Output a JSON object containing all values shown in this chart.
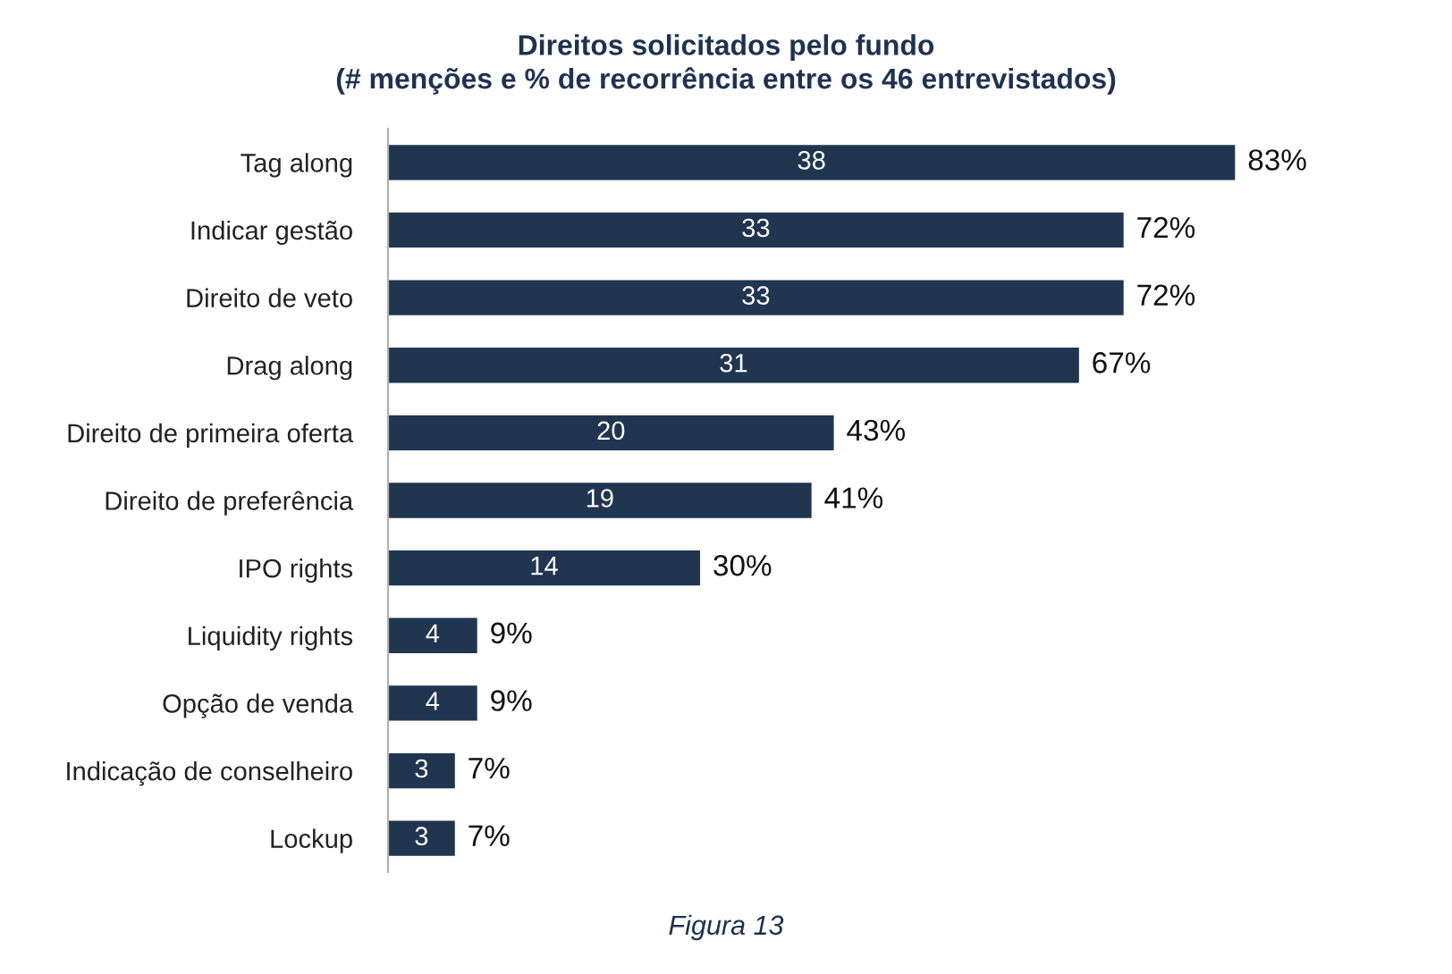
{
  "chart_data": {
    "type": "bar",
    "orientation": "horizontal",
    "title": "Direitos solicitados pelo fundo\n(# menções e % de recorrência entre os 46 entrevistados)",
    "categories": [
      "Tag along",
      "Indicar gestão",
      "Direito de veto",
      "Drag along",
      "Direito de primeira oferta",
      "Direito de preferência",
      "IPO rights",
      "Liquidity rights",
      "Opção de venda",
      "Indicação de conselheiro",
      "Lockup"
    ],
    "values": [
      38,
      33,
      33,
      31,
      20,
      19,
      14,
      4,
      4,
      3,
      3
    ],
    "color": "#203550",
    "data_labels": true,
    "grid": false,
    "legend": false,
    "tick_labels": "y",
    "annotations": [
      {
        "text": "83%",
        "x": 38,
        "y": "Tag along"
      },
      {
        "text": "72%",
        "x": 33,
        "y": "Indicar gestão"
      },
      {
        "text": "72%",
        "x": 33,
        "y": "Direito de veto"
      },
      {
        "text": "67%",
        "x": 31,
        "y": "Drag along"
      },
      {
        "text": "43%",
        "x": 20,
        "y": "Direito de primeira oferta"
      },
      {
        "text": "41%",
        "x": 19,
        "y": "Direito de preferência"
      },
      {
        "text": "30%",
        "x": 14,
        "y": "IPO rights"
      },
      {
        "text": "9%",
        "x": 4,
        "y": "Liquidity rights"
      },
      {
        "text": "9%",
        "x": 4,
        "y": "Opção de venda"
      },
      {
        "text": "7%",
        "x": 3,
        "y": "Indicação de conselheiro"
      },
      {
        "text": "7%",
        "x": 3,
        "y": "Lockup"
      },
      "Figura 13"
    ]
  }
}
